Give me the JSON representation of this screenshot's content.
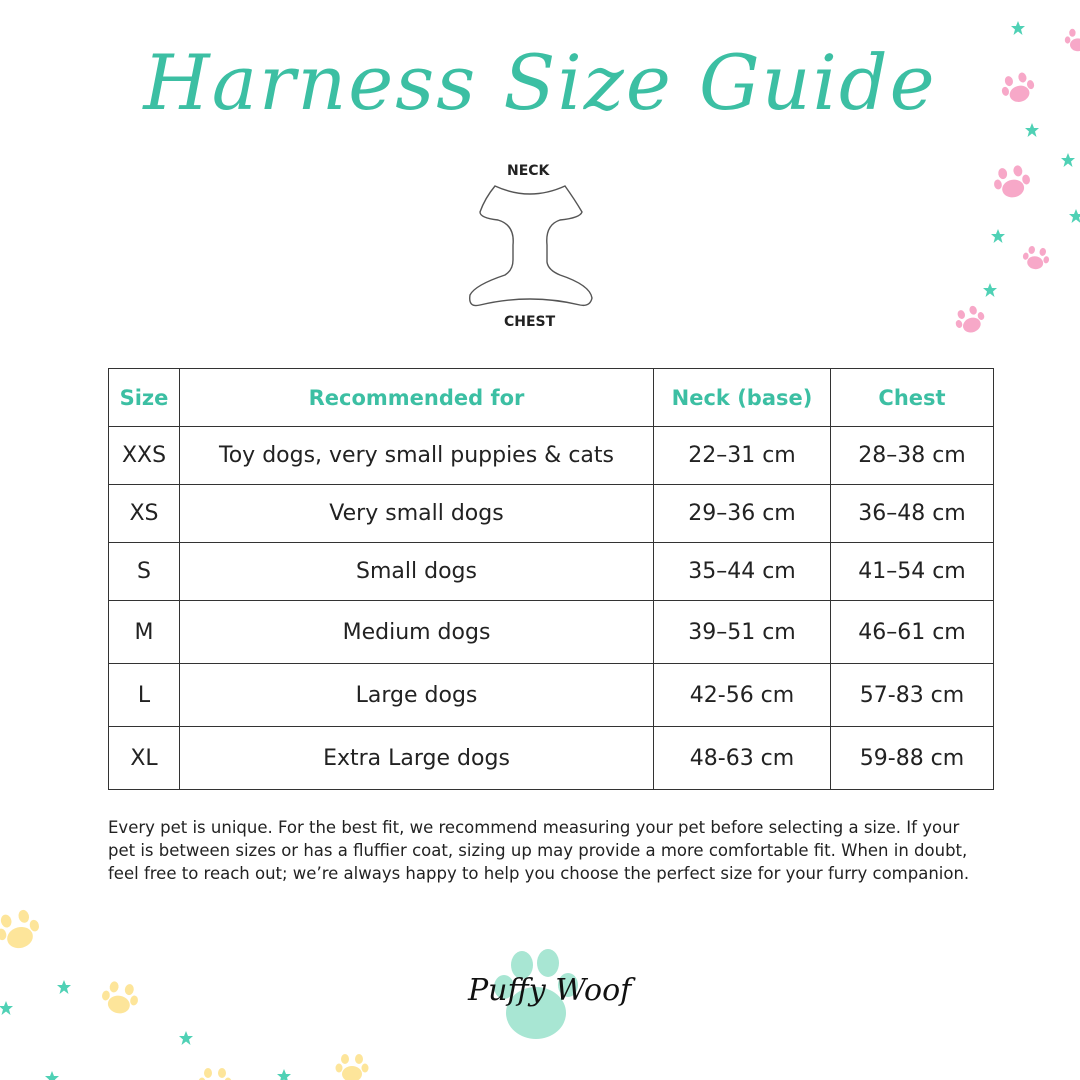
{
  "title": "Harness Size Guide",
  "diagram": {
    "neck_label": "NECK",
    "chest_label": "CHEST"
  },
  "table": {
    "headers": [
      "Size",
      "Recommended for",
      "Neck (base)",
      "Chest"
    ],
    "rows": [
      [
        "XXS",
        "Toy dogs, very small puppies & cats",
        "22–31 cm",
        "28–38 cm"
      ],
      [
        "XS",
        "Very small dogs",
        "29–36 cm",
        "36–48 cm"
      ],
      [
        "S",
        "Small dogs",
        "35–44 cm",
        "41–54 cm"
      ],
      [
        "M",
        "Medium dogs",
        "39–51 cm",
        "46–61 cm"
      ],
      [
        "L",
        "Large dogs",
        "42-56 cm",
        "57-83 cm"
      ],
      [
        "XL",
        "Extra Large dogs",
        "48-63 cm",
        "59-88 cm"
      ]
    ]
  },
  "note": "Every pet is unique. For the best fit, we recommend measuring your pet before selecting a size. If your pet is between sizes or has a fluffier coat, sizing up may provide a more comfortable fit. When in doubt, feel free to reach out; we’re always happy to help you choose the perfect size for your furry companion.",
  "logo": {
    "text": "Puffy Woof"
  },
  "colors": {
    "accent": "#3cbfa3",
    "pink_paw": "#f7a8c8",
    "yellow_paw": "#fde59a",
    "star": "#4fd1b5",
    "logo_paw": "#a8e6d3"
  }
}
